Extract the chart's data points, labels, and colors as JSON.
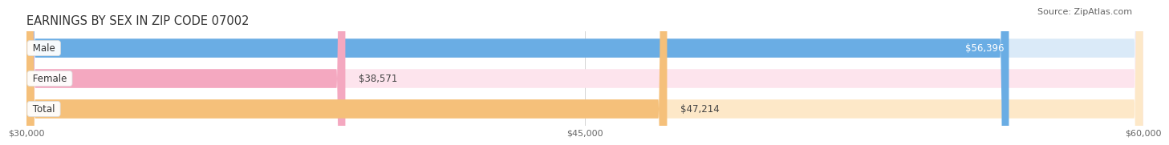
{
  "title": "EARNINGS BY SEX IN ZIP CODE 07002",
  "source": "Source: ZipAtlas.com",
  "categories": [
    "Male",
    "Female",
    "Total"
  ],
  "values": [
    56396,
    38571,
    47214
  ],
  "bar_colors": [
    "#6aade4",
    "#f4a8c0",
    "#f5c07a"
  ],
  "bar_bg_colors": [
    "#daeaf8",
    "#fde4ed",
    "#fde8c8"
  ],
  "value_labels": [
    "$56,396",
    "$38,571",
    "$47,214"
  ],
  "value_label_colors": [
    "#ffffff",
    "#555555",
    "#555555"
  ],
  "xmin": 30000,
  "xmax": 60000,
  "xticks": [
    30000,
    45000,
    60000
  ],
  "xtick_labels": [
    "$30,000",
    "$45,000",
    "$60,000"
  ],
  "bar_height": 0.62,
  "bg_color": "#ffffff",
  "title_color": "#333333",
  "title_fontsize": 10.5,
  "source_fontsize": 8,
  "cat_fontsize": 8.5,
  "value_fontsize": 8.5,
  "tick_fontsize": 8
}
